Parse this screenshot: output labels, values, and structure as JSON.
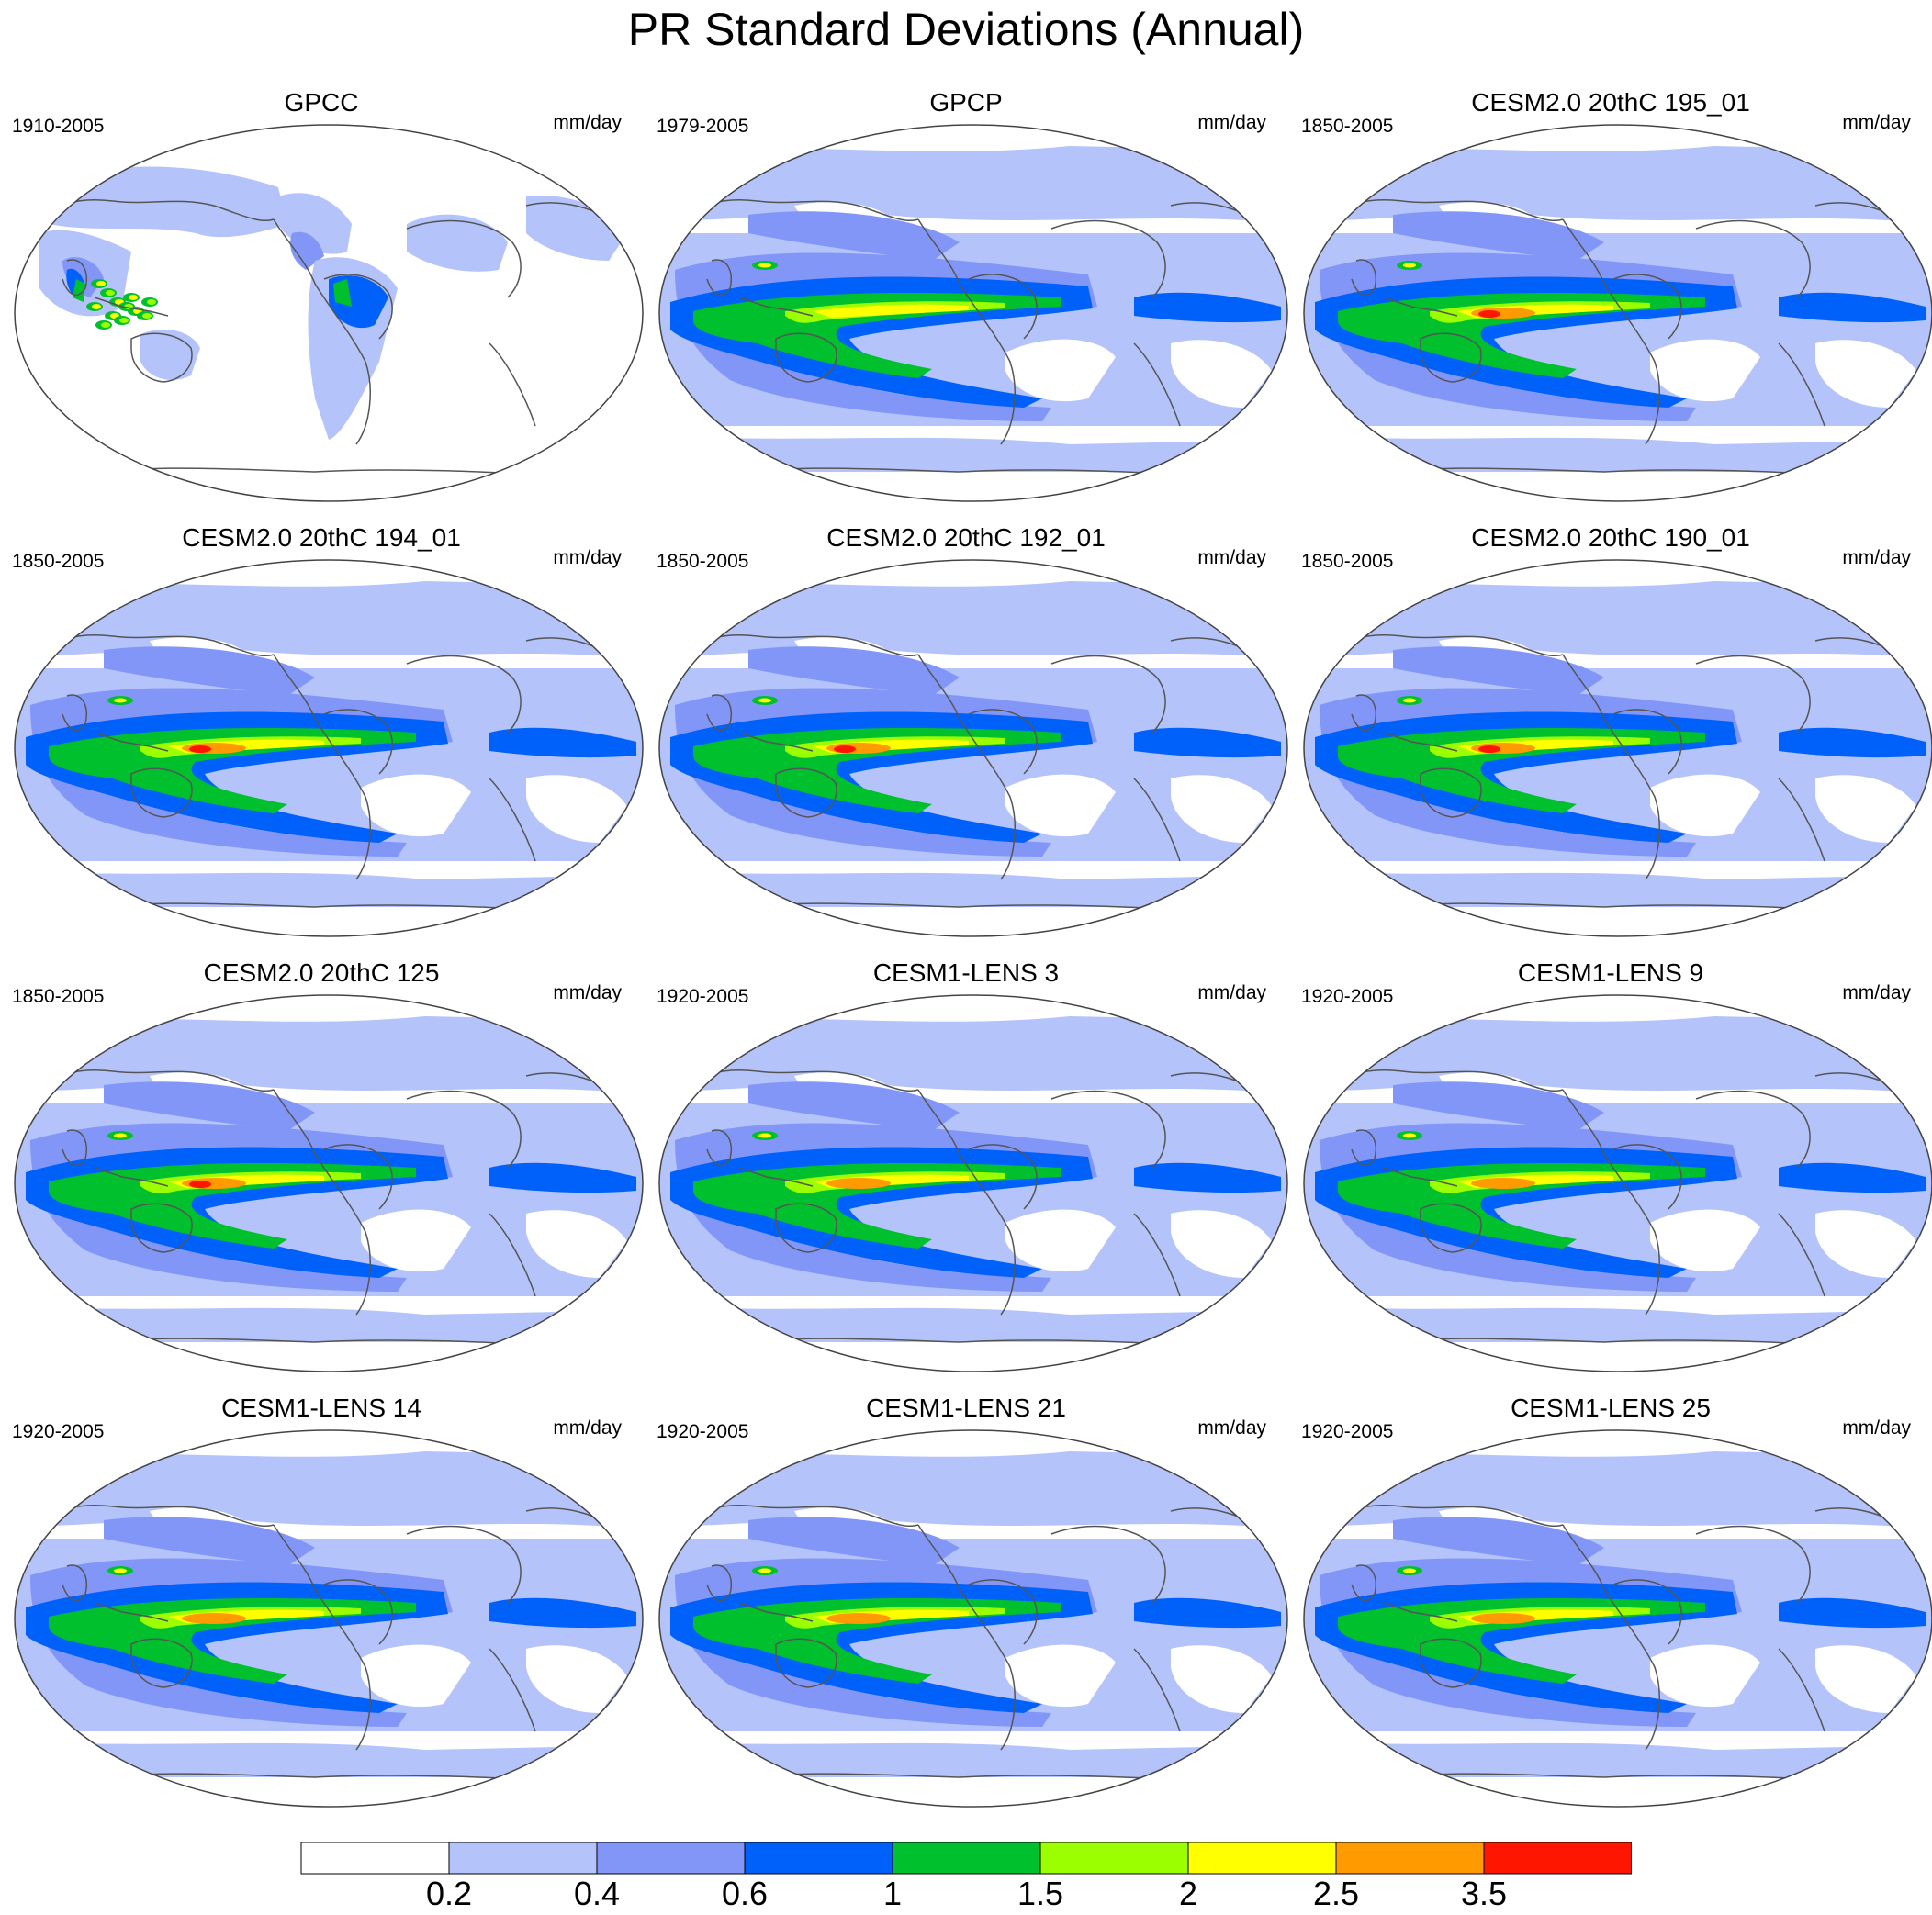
{
  "title": "PR Standard Deviations (Annual)",
  "units": "mm/day",
  "panels": [
    {
      "title": "GPCC",
      "years": "1910-2005",
      "style": "obs_land"
    },
    {
      "title": "GPCP",
      "years": "1979-2005",
      "style": "obs"
    },
    {
      "title": "CESM2.0 20thC 195_01",
      "years": "1850-2005",
      "style": "cesm2"
    },
    {
      "title": "CESM2.0 20thC 194_01",
      "years": "1850-2005",
      "style": "cesm2"
    },
    {
      "title": "CESM2.0 20thC 192_01",
      "years": "1850-2005",
      "style": "cesm2"
    },
    {
      "title": "CESM2.0 20thC 190_01",
      "years": "1850-2005",
      "style": "cesm2"
    },
    {
      "title": "CESM2.0 20thC 125",
      "years": "1850-2005",
      "style": "cesm2"
    },
    {
      "title": "CESM1-LENS 3",
      "years": "1920-2005",
      "style": "lens"
    },
    {
      "title": "CESM1-LENS 9",
      "years": "1920-2005",
      "style": "lens"
    },
    {
      "title": "CESM1-LENS 14",
      "years": "1920-2005",
      "style": "lens"
    },
    {
      "title": "CESM1-LENS 21",
      "years": "1920-2005",
      "style": "lens"
    },
    {
      "title": "CESM1-LENS 25",
      "years": "1920-2005",
      "style": "lens"
    }
  ],
  "colorbar": {
    "colors": [
      "#ffffff",
      "#b4c3fa",
      "#8296f8",
      "#0061fa",
      "#00c02e",
      "#9bff00",
      "#ffff00",
      "#ff9b00",
      "#ff1600"
    ],
    "labels": [
      "0.2",
      "0.4",
      "0.6",
      "1",
      "1.5",
      "2",
      "2.5",
      "3.5"
    ]
  }
}
